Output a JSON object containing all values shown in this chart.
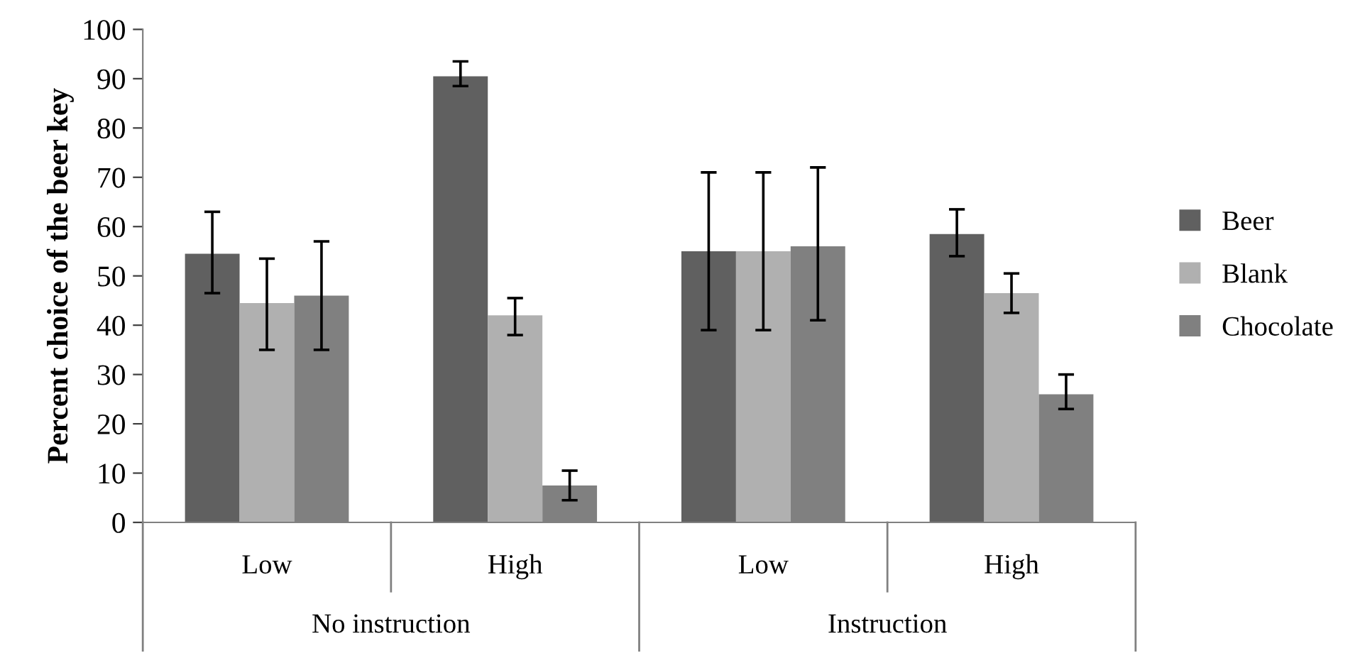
{
  "chart_data": {
    "type": "bar",
    "ylabel": "Percent choice of the beer key",
    "categories": [
      "Low",
      "High",
      "Low",
      "High"
    ],
    "annotations": [
      "No instruction",
      "Instruction"
    ],
    "series": [
      {
        "name": "Beer",
        "color": "#606060",
        "values": [
          54.5,
          90.5,
          55,
          58.5
        ],
        "errors": [
          [
            46.5,
            63
          ],
          [
            88.5,
            93.5
          ],
          [
            39,
            71
          ],
          [
            54,
            63.5
          ]
        ]
      },
      {
        "name": "Blank",
        "color": "#b0b0b0",
        "values": [
          44.5,
          42,
          55,
          46.5
        ],
        "errors": [
          [
            35,
            53.5
          ],
          [
            38,
            45.5
          ],
          [
            39,
            71
          ],
          [
            42.5,
            50.5
          ]
        ]
      },
      {
        "name": "Chocolate",
        "color": "#808080",
        "values": [
          46,
          7.5,
          56,
          26
        ],
        "errors": [
          [
            35,
            57
          ],
          [
            4.5,
            10.5
          ],
          [
            41,
            72
          ],
          [
            23,
            30
          ]
        ]
      }
    ],
    "ylim": [
      0,
      100
    ],
    "yticks": [
      0,
      10,
      20,
      30,
      40,
      50,
      60,
      70,
      80,
      90,
      100
    ],
    "grid": false,
    "legend": "right"
  }
}
